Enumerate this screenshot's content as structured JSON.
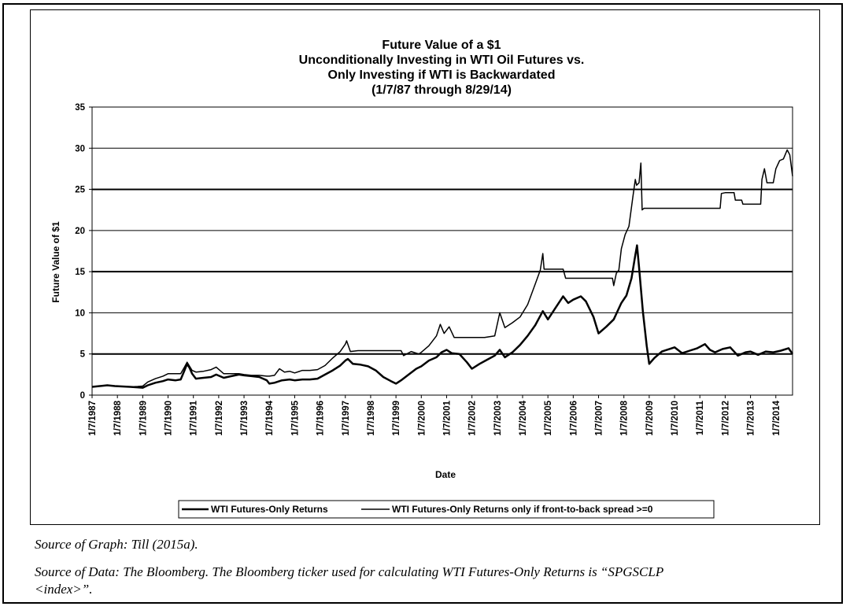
{
  "chart_data": {
    "type": "line",
    "title_lines": [
      "Future Value of a $1",
      "Unconditionally Investing in WTI Oil Futures vs.",
      "Only Investing if WTI is Backwardated",
      "(1/7/87 through 8/29/14)"
    ],
    "xlabel": "Date",
    "ylabel": "Future Value of $1",
    "ylim": [
      0,
      35
    ],
    "yticks": [
      0,
      5,
      10,
      15,
      20,
      25,
      30,
      35
    ],
    "xlim": [
      1987.0,
      2014.66
    ],
    "xticks": [
      {
        "value": 1987,
        "label": "1/7/1987"
      },
      {
        "value": 1988,
        "label": "1/7/1988"
      },
      {
        "value": 1989,
        "label": "1/7/1989"
      },
      {
        "value": 1990,
        "label": "1/7/1990"
      },
      {
        "value": 1991,
        "label": "1/7/1991"
      },
      {
        "value": 1992,
        "label": "1/7/1992"
      },
      {
        "value": 1993,
        "label": "1/7/1993"
      },
      {
        "value": 1994,
        "label": "1/7/1994"
      },
      {
        "value": 1995,
        "label": "1/7/1995"
      },
      {
        "value": 1996,
        "label": "1/7/1996"
      },
      {
        "value": 1997,
        "label": "1/7/1997"
      },
      {
        "value": 1998,
        "label": "1/7/1998"
      },
      {
        "value": 1999,
        "label": "1/7/1999"
      },
      {
        "value": 2000,
        "label": "1/7/2000"
      },
      {
        "value": 2001,
        "label": "1/7/2001"
      },
      {
        "value": 2002,
        "label": "1/7/2002"
      },
      {
        "value": 2003,
        "label": "1/7/2003"
      },
      {
        "value": 2004,
        "label": "1/7/2004"
      },
      {
        "value": 2005,
        "label": "1/7/2005"
      },
      {
        "value": 2006,
        "label": "1/7/2006"
      },
      {
        "value": 2007,
        "label": "1/7/2007"
      },
      {
        "value": 2008,
        "label": "1/7/2008"
      },
      {
        "value": 2009,
        "label": "1/7/2009"
      },
      {
        "value": 2010,
        "label": "1/7/2010"
      },
      {
        "value": 2011,
        "label": "1/7/2011"
      },
      {
        "value": 2012,
        "label": "1/7/2012"
      },
      {
        "value": 2013,
        "label": "1/7/2013"
      },
      {
        "value": 2014,
        "label": "1/7/2014"
      }
    ],
    "grid": "horizontal",
    "legend_position": "bottom",
    "series": [
      {
        "name": "WTI Futures-Only Returns",
        "color": "#000000",
        "points": [
          [
            1987.0,
            1.0
          ],
          [
            1987.3,
            1.1
          ],
          [
            1987.6,
            1.2
          ],
          [
            1987.9,
            1.1
          ],
          [
            1988.2,
            1.05
          ],
          [
            1988.5,
            1.0
          ],
          [
            1988.8,
            0.95
          ],
          [
            1989.0,
            0.9
          ],
          [
            1989.2,
            1.2
          ],
          [
            1989.5,
            1.5
          ],
          [
            1989.8,
            1.7
          ],
          [
            1990.0,
            1.9
          ],
          [
            1990.3,
            1.8
          ],
          [
            1990.5,
            1.9
          ],
          [
            1990.65,
            3.0
          ],
          [
            1990.75,
            3.8
          ],
          [
            1990.85,
            3.3
          ],
          [
            1990.95,
            2.6
          ],
          [
            1991.1,
            2.0
          ],
          [
            1991.4,
            2.1
          ],
          [
            1991.7,
            2.2
          ],
          [
            1991.9,
            2.5
          ],
          [
            1992.2,
            2.1
          ],
          [
            1992.5,
            2.3
          ],
          [
            1992.8,
            2.5
          ],
          [
            1993.0,
            2.4
          ],
          [
            1993.3,
            2.3
          ],
          [
            1993.6,
            2.2
          ],
          [
            1993.9,
            1.8
          ],
          [
            1994.0,
            1.4
          ],
          [
            1994.2,
            1.5
          ],
          [
            1994.5,
            1.8
          ],
          [
            1994.8,
            1.9
          ],
          [
            1995.0,
            1.8
          ],
          [
            1995.3,
            1.9
          ],
          [
            1995.6,
            1.9
          ],
          [
            1995.9,
            2.0
          ],
          [
            1996.2,
            2.5
          ],
          [
            1996.5,
            3.0
          ],
          [
            1996.8,
            3.6
          ],
          [
            1997.0,
            4.2
          ],
          [
            1997.1,
            4.4
          ],
          [
            1997.3,
            3.8
          ],
          [
            1997.6,
            3.7
          ],
          [
            1997.9,
            3.5
          ],
          [
            1998.2,
            3.0
          ],
          [
            1998.5,
            2.2
          ],
          [
            1998.8,
            1.7
          ],
          [
            1999.0,
            1.4
          ],
          [
            1999.2,
            1.8
          ],
          [
            1999.5,
            2.5
          ],
          [
            1999.8,
            3.2
          ],
          [
            2000.0,
            3.5
          ],
          [
            2000.3,
            4.2
          ],
          [
            2000.6,
            4.6
          ],
          [
            2000.8,
            5.2
          ],
          [
            2001.0,
            5.5
          ],
          [
            2001.2,
            5.1
          ],
          [
            2001.5,
            5.0
          ],
          [
            2001.8,
            4.0
          ],
          [
            2002.0,
            3.2
          ],
          [
            2002.3,
            3.8
          ],
          [
            2002.6,
            4.3
          ],
          [
            2002.9,
            4.8
          ],
          [
            2003.1,
            5.5
          ],
          [
            2003.3,
            4.6
          ],
          [
            2003.6,
            5.2
          ],
          [
            2003.9,
            6.1
          ],
          [
            2004.2,
            7.2
          ],
          [
            2004.5,
            8.5
          ],
          [
            2004.8,
            10.2
          ],
          [
            2005.0,
            9.2
          ],
          [
            2005.3,
            10.6
          ],
          [
            2005.6,
            12.0
          ],
          [
            2005.8,
            11.2
          ],
          [
            2006.0,
            11.6
          ],
          [
            2006.3,
            12.0
          ],
          [
            2006.5,
            11.4
          ],
          [
            2006.8,
            9.5
          ],
          [
            2007.0,
            7.5
          ],
          [
            2007.3,
            8.3
          ],
          [
            2007.6,
            9.2
          ],
          [
            2007.9,
            11.2
          ],
          [
            2008.1,
            12.1
          ],
          [
            2008.3,
            14.2
          ],
          [
            2008.45,
            17.0
          ],
          [
            2008.52,
            18.2
          ],
          [
            2008.6,
            15.5
          ],
          [
            2008.75,
            10.2
          ],
          [
            2008.9,
            6.0
          ],
          [
            2009.0,
            3.8
          ],
          [
            2009.2,
            4.5
          ],
          [
            2009.5,
            5.3
          ],
          [
            2009.8,
            5.6
          ],
          [
            2010.0,
            5.8
          ],
          [
            2010.3,
            5.1
          ],
          [
            2010.6,
            5.4
          ],
          [
            2010.9,
            5.7
          ],
          [
            2011.2,
            6.2
          ],
          [
            2011.4,
            5.5
          ],
          [
            2011.6,
            5.2
          ],
          [
            2011.9,
            5.6
          ],
          [
            2012.2,
            5.8
          ],
          [
            2012.5,
            4.8
          ],
          [
            2012.8,
            5.2
          ],
          [
            2013.0,
            5.3
          ],
          [
            2013.3,
            4.9
          ],
          [
            2013.6,
            5.3
          ],
          [
            2013.9,
            5.2
          ],
          [
            2014.2,
            5.4
          ],
          [
            2014.5,
            5.7
          ],
          [
            2014.66,
            5.0
          ]
        ]
      },
      {
        "name": "WTI Futures-Only Returns only if front-to-back spread >=0",
        "color": "#000000",
        "points": [
          [
            1987.0,
            1.0
          ],
          [
            1987.3,
            1.1
          ],
          [
            1987.6,
            1.2
          ],
          [
            1987.9,
            1.1
          ],
          [
            1988.2,
            1.05
          ],
          [
            1988.5,
            1.0
          ],
          [
            1988.8,
            1.05
          ],
          [
            1989.0,
            1.1
          ],
          [
            1989.2,
            1.6
          ],
          [
            1989.5,
            2.0
          ],
          [
            1989.8,
            2.3
          ],
          [
            1990.0,
            2.6
          ],
          [
            1990.3,
            2.6
          ],
          [
            1990.5,
            2.6
          ],
          [
            1990.65,
            3.4
          ],
          [
            1990.75,
            4.0
          ],
          [
            1990.85,
            3.5
          ],
          [
            1990.95,
            3.0
          ],
          [
            1991.1,
            2.8
          ],
          [
            1991.4,
            2.9
          ],
          [
            1991.7,
            3.1
          ],
          [
            1991.9,
            3.4
          ],
          [
            1992.2,
            2.6
          ],
          [
            1992.5,
            2.6
          ],
          [
            1992.8,
            2.6
          ],
          [
            1993.0,
            2.5
          ],
          [
            1993.3,
            2.4
          ],
          [
            1993.6,
            2.4
          ],
          [
            1993.9,
            2.3
          ],
          [
            1994.0,
            2.3
          ],
          [
            1994.2,
            2.4
          ],
          [
            1994.4,
            3.2
          ],
          [
            1994.6,
            2.8
          ],
          [
            1994.8,
            2.9
          ],
          [
            1995.0,
            2.7
          ],
          [
            1995.3,
            3.0
          ],
          [
            1995.6,
            3.0
          ],
          [
            1995.9,
            3.1
          ],
          [
            1996.2,
            3.6
          ],
          [
            1996.5,
            4.5
          ],
          [
            1996.8,
            5.3
          ],
          [
            1997.0,
            6.2
          ],
          [
            1997.05,
            6.6
          ],
          [
            1997.2,
            5.3
          ],
          [
            1997.5,
            5.4
          ],
          [
            1997.8,
            5.4
          ],
          [
            1998.0,
            5.4
          ],
          [
            1998.5,
            5.4
          ],
          [
            1998.8,
            5.4
          ],
          [
            1999.0,
            5.4
          ],
          [
            1999.2,
            5.4
          ],
          [
            1999.3,
            4.8
          ],
          [
            1999.6,
            5.3
          ],
          [
            1999.9,
            5.0
          ],
          [
            2000.0,
            5.2
          ],
          [
            2000.3,
            6.0
          ],
          [
            2000.6,
            7.2
          ],
          [
            2000.75,
            8.6
          ],
          [
            2000.9,
            7.5
          ],
          [
            2001.1,
            8.3
          ],
          [
            2001.3,
            7.0
          ],
          [
            2001.6,
            7.0
          ],
          [
            2002.0,
            7.0
          ],
          [
            2002.5,
            7.0
          ],
          [
            2002.9,
            7.2
          ],
          [
            2003.1,
            10.0
          ],
          [
            2003.3,
            8.2
          ],
          [
            2003.6,
            8.8
          ],
          [
            2003.9,
            9.5
          ],
          [
            2004.2,
            11.0
          ],
          [
            2004.5,
            13.5
          ],
          [
            2004.7,
            15.2
          ],
          [
            2004.8,
            17.2
          ],
          [
            2004.85,
            15.3
          ],
          [
            2005.1,
            15.3
          ],
          [
            2005.4,
            15.3
          ],
          [
            2005.6,
            15.3
          ],
          [
            2005.7,
            14.2
          ],
          [
            2006.0,
            14.2
          ],
          [
            2006.5,
            14.2
          ],
          [
            2006.8,
            14.2
          ],
          [
            2007.1,
            14.2
          ],
          [
            2007.55,
            14.2
          ],
          [
            2007.6,
            13.3
          ],
          [
            2007.7,
            14.8
          ],
          [
            2007.8,
            15.2
          ],
          [
            2007.9,
            17.8
          ],
          [
            2008.05,
            19.5
          ],
          [
            2008.2,
            20.5
          ],
          [
            2008.35,
            24.0
          ],
          [
            2008.45,
            26.2
          ],
          [
            2008.5,
            25.5
          ],
          [
            2008.6,
            25.8
          ],
          [
            2008.67,
            28.2
          ],
          [
            2008.72,
            22.5
          ],
          [
            2008.8,
            22.7
          ],
          [
            2009.5,
            22.7
          ],
          [
            2010.0,
            22.7
          ],
          [
            2010.5,
            22.7
          ],
          [
            2011.0,
            22.7
          ],
          [
            2011.8,
            22.7
          ],
          [
            2011.85,
            24.5
          ],
          [
            2012.0,
            24.6
          ],
          [
            2012.35,
            24.6
          ],
          [
            2012.4,
            23.7
          ],
          [
            2012.65,
            23.7
          ],
          [
            2012.7,
            23.2
          ],
          [
            2013.0,
            23.2
          ],
          [
            2013.4,
            23.2
          ],
          [
            2013.45,
            26.2
          ],
          [
            2013.55,
            27.5
          ],
          [
            2013.65,
            25.8
          ],
          [
            2013.9,
            25.8
          ],
          [
            2014.0,
            27.5
          ],
          [
            2014.15,
            28.5
          ],
          [
            2014.3,
            28.7
          ],
          [
            2014.45,
            29.8
          ],
          [
            2014.55,
            29.2
          ],
          [
            2014.66,
            26.6
          ]
        ]
      }
    ]
  },
  "sources": {
    "graph": "Source of Graph:  Till (2015a).",
    "data_line1": "Source of Data:  The Bloomberg.  The Bloomberg ticker used for calculating WTI Futures-Only Returns is “SPGSCLP",
    "data_line2": "<index>”."
  }
}
